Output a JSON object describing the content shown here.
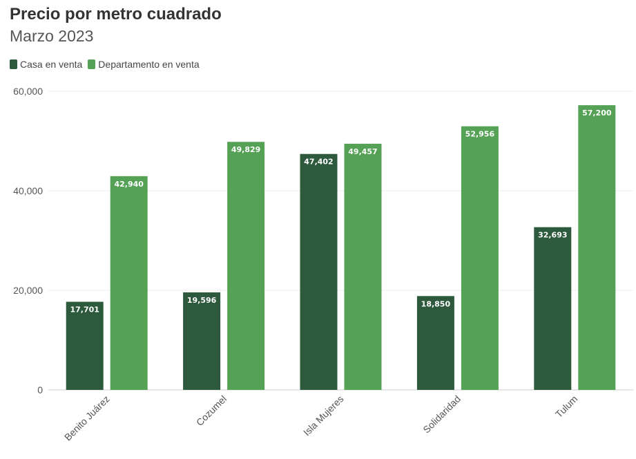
{
  "header": {
    "title": "Precio por metro cuadrado",
    "subtitle": "Marzo 2023"
  },
  "legend": {
    "items": [
      {
        "label": "Casa en venta",
        "color": "#2d5a3d"
      },
      {
        "label": "Departamento en venta",
        "color": "#55a155"
      }
    ]
  },
  "chart_data": {
    "type": "bar",
    "title": "Precio por metro cuadrado",
    "subtitle": "Marzo 2023",
    "categories": [
      "Benito Juárez",
      "Cozumel",
      "Isla Mujeres",
      "Solidaridad",
      "Tulum"
    ],
    "series": [
      {
        "name": "Casa en venta",
        "color": "#2d5a3d",
        "values": [
          17701,
          19596,
          47402,
          18850,
          32693
        ],
        "labels": [
          "17,701",
          "19,596",
          "47,402",
          "18,850",
          "32,693"
        ]
      },
      {
        "name": "Departamento en venta",
        "color": "#55a155",
        "values": [
          42940,
          49829,
          49457,
          52956,
          57200
        ],
        "labels": [
          "42,940",
          "49,829",
          "49,457",
          "52,956",
          "57,200"
        ]
      }
    ],
    "ylim": [
      0,
      60000
    ],
    "yticks": [
      0,
      20000,
      40000,
      60000
    ],
    "ytick_labels": [
      "0",
      "20,000",
      "40,000",
      "60,000"
    ],
    "xlabel": "",
    "ylabel": "",
    "grid": true,
    "legend_position": "top-left"
  }
}
